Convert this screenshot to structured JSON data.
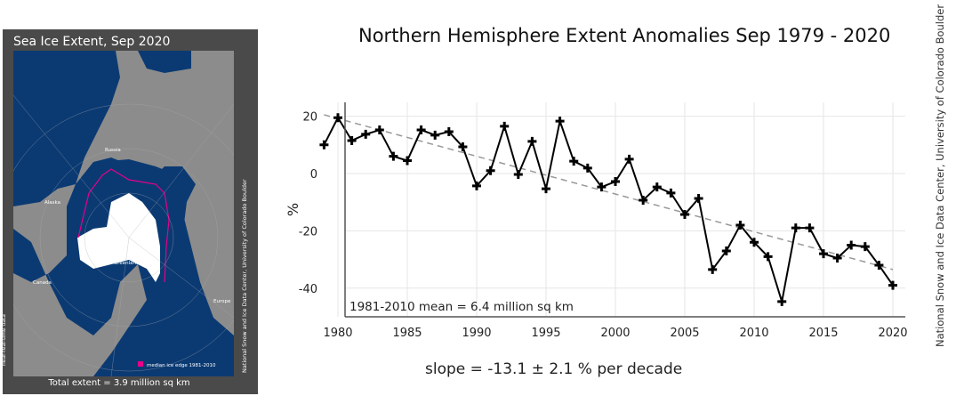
{
  "map": {
    "title": "Sea Ice Extent, Sep 2020",
    "total": "Total extent = 3.9 million sq km",
    "legend": "median ice edge 1981-2010",
    "side_left": "near-real-time data",
    "side_right": "National Snow and Ice Data Center, University of Colorado Boulder",
    "labels": {
      "russia": "Russia",
      "alaska": "Alaska",
      "canada": "Canada",
      "greenland": "Greenland",
      "europe": "Europe"
    },
    "colors": {
      "ocean": "#0b3a73",
      "land": "#8c8c8c",
      "ice": "#ffffff",
      "median": "#e6008a",
      "frame": "#4a4a4a"
    }
  },
  "credit": "National Snow and Ice Data Center, University of Colorado Boulder",
  "chart_data": {
    "type": "line",
    "title": "Northern Hemisphere Extent Anomalies Sep 1979 - 2020",
    "ylabel": "%",
    "xlabel": "",
    "annotation": "1981-2010 mean = 6.4 million sq km",
    "footer": "slope = -13.1 ± 2.1 % per decade",
    "xlim": [
      1978.5,
      2021
    ],
    "ylim": [
      -47,
      24
    ],
    "x_ticks": [
      1980,
      1985,
      1990,
      1995,
      2000,
      2005,
      2010,
      2015,
      2020
    ],
    "y_ticks": [
      20,
      0,
      -20,
      -40
    ],
    "grid": true,
    "x": [
      1979,
      1980,
      1981,
      1982,
      1983,
      1984,
      1985,
      1986,
      1987,
      1988,
      1989,
      1990,
      1991,
      1992,
      1993,
      1994,
      1995,
      1996,
      1997,
      1998,
      1999,
      2000,
      2001,
      2002,
      2003,
      2004,
      2005,
      2006,
      2007,
      2008,
      2009,
      2010,
      2011,
      2012,
      2013,
      2014,
      2015,
      2016,
      2017,
      2018,
      2019,
      2020
    ],
    "series": [
      {
        "name": "anomaly",
        "values": [
          10,
          19.5,
          11.5,
          13.7,
          15.2,
          6,
          4.5,
          15.2,
          13.4,
          14.6,
          9.3,
          -4.3,
          1,
          16.5,
          -0.3,
          11.2,
          -5.3,
          18.3,
          4.3,
          1.9,
          -4.7,
          -2.8,
          5,
          -9.3,
          -4.7,
          -6.8,
          -14.3,
          -8.7,
          -33.5,
          -27,
          -18,
          -24,
          -29,
          -44.7,
          -19,
          -19,
          -28,
          -29.5,
          -25,
          -25.5,
          -32,
          -39
        ]
      }
    ],
    "trend": {
      "name": "linear trend",
      "x": [
        1979,
        2020
      ],
      "values": [
        20.5,
        -33.5
      ]
    }
  }
}
